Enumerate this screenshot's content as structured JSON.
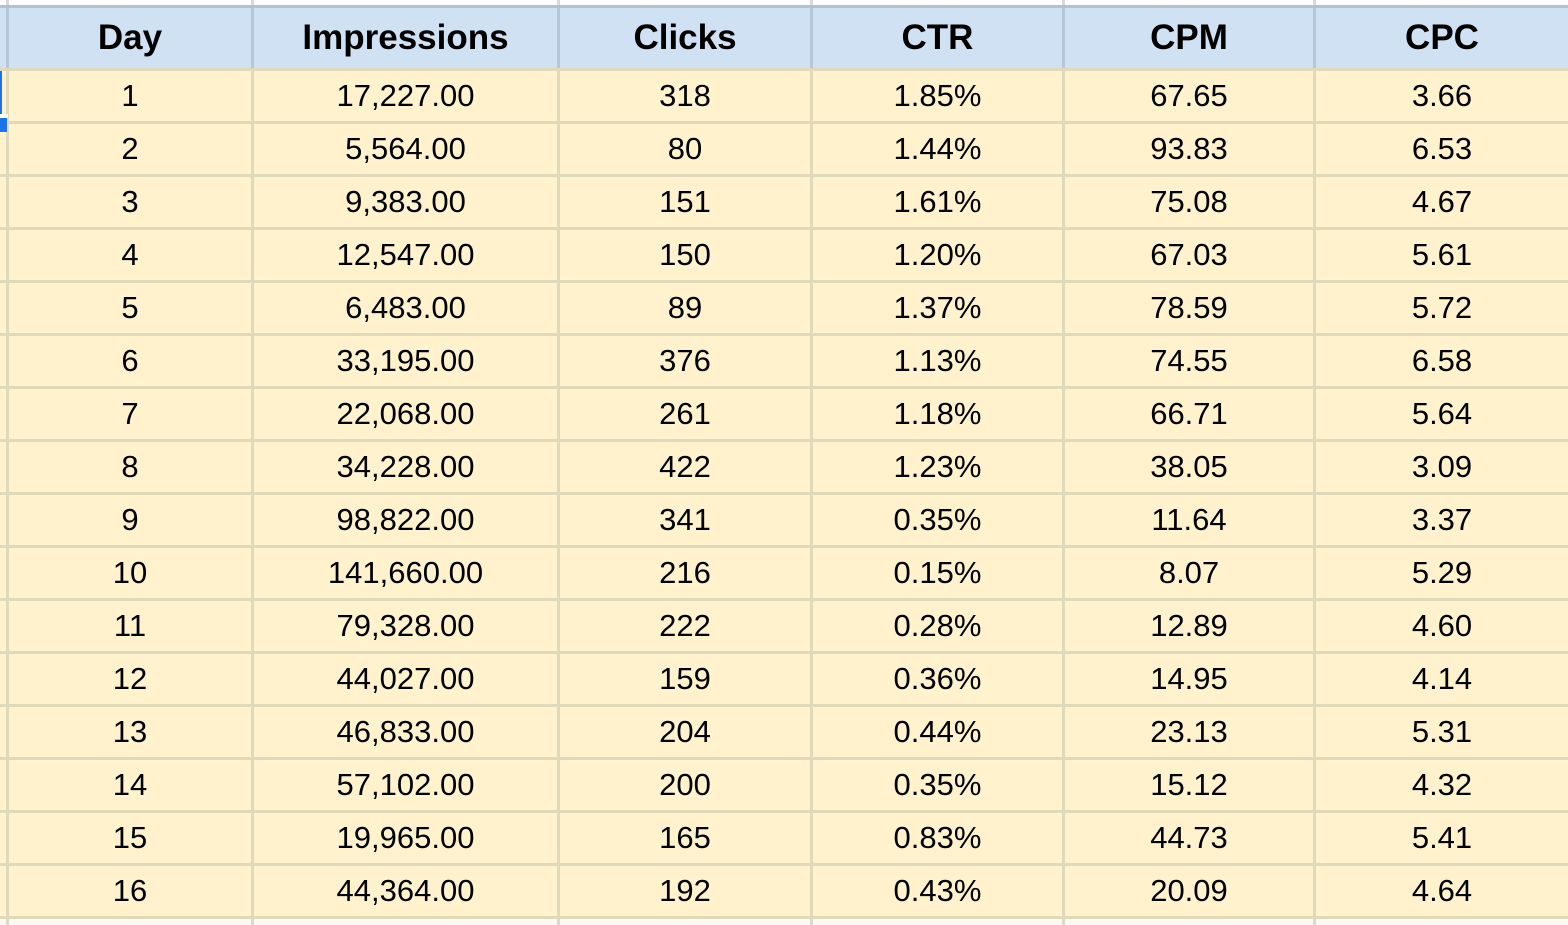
{
  "table": {
    "columns": [
      "Day",
      "Impressions",
      "Clicks",
      "CTR",
      "CPM",
      "CPC"
    ],
    "rows": [
      [
        "1",
        "17,227.00",
        "318",
        "1.85%",
        "67.65",
        "3.66"
      ],
      [
        "2",
        "5,564.00",
        "80",
        "1.44%",
        "93.83",
        "6.53"
      ],
      [
        "3",
        "9,383.00",
        "151",
        "1.61%",
        "75.08",
        "4.67"
      ],
      [
        "4",
        "12,547.00",
        "150",
        "1.20%",
        "67.03",
        "5.61"
      ],
      [
        "5",
        "6,483.00",
        "89",
        "1.37%",
        "78.59",
        "5.72"
      ],
      [
        "6",
        "33,195.00",
        "376",
        "1.13%",
        "74.55",
        "6.58"
      ],
      [
        "7",
        "22,068.00",
        "261",
        "1.18%",
        "66.71",
        "5.64"
      ],
      [
        "8",
        "34,228.00",
        "422",
        "1.23%",
        "38.05",
        "3.09"
      ],
      [
        "9",
        "98,822.00",
        "341",
        "0.35%",
        "11.64",
        "3.37"
      ],
      [
        "10",
        "141,660.00",
        "216",
        "0.15%",
        "8.07",
        "5.29"
      ],
      [
        "11",
        "79,328.00",
        "222",
        "0.28%",
        "12.89",
        "4.60"
      ],
      [
        "12",
        "44,027.00",
        "159",
        "0.36%",
        "14.95",
        "4.14"
      ],
      [
        "13",
        "46,833.00",
        "204",
        "0.44%",
        "23.13",
        "5.31"
      ],
      [
        "14",
        "57,102.00",
        "200",
        "0.35%",
        "15.12",
        "4.32"
      ],
      [
        "15",
        "19,965.00",
        "165",
        "0.83%",
        "44.73",
        "5.41"
      ],
      [
        "16",
        "44,364.00",
        "192",
        "0.43%",
        "20.09",
        "4.64"
      ]
    ]
  },
  "colors": {
    "header_bg": "#cfe1f3",
    "cell_bg": "#fff2cc",
    "grid_on_yellow": "#e0d9ba",
    "grid_on_blue": "#b7c6d8",
    "header_top_border": "#b2c1d2",
    "top_strip_bg": "#ffffff",
    "top_strip_grid": "#d9d9d9",
    "bottom_partial_bg": "#fcf9f0",
    "bottom_partial_grid": "#dcd9cc",
    "selection_blue": "#1a73e8",
    "text": "#000000"
  }
}
